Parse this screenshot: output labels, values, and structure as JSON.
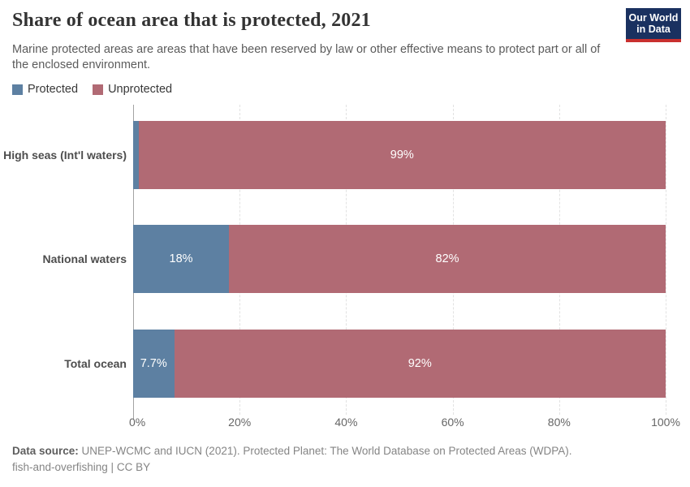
{
  "header": {
    "title": "Share of ocean area that is protected, 2021",
    "subtitle": "Marine protected areas are areas that have been reserved by law or other effective means to protect part or all of the enclosed environment.",
    "logo": {
      "line1": "Our World",
      "line2": "in Data",
      "bg_color": "#1a3160",
      "accent_color": "#c9302f"
    }
  },
  "chart_data": {
    "type": "bar",
    "variant": "stacked-horizontal",
    "title": "Share of ocean area that is protected, 2021",
    "categories": [
      "High seas (Int'l waters)",
      "National waters",
      "Total ocean"
    ],
    "series": [
      {
        "name": "Protected",
        "color": "#5d80a2",
        "values": [
          1,
          18,
          7.7
        ],
        "labels": [
          "",
          "18%",
          "7.7%"
        ]
      },
      {
        "name": "Unprotected",
        "color": "#b16a74",
        "values": [
          99,
          82,
          92.3
        ],
        "labels": [
          "99%",
          "82%",
          "92%"
        ]
      }
    ],
    "xlim": [
      0,
      100
    ],
    "x_ticks": [
      {
        "value": 0,
        "label": "0%"
      },
      {
        "value": 20,
        "label": "20%"
      },
      {
        "value": 40,
        "label": "40%"
      },
      {
        "value": 60,
        "label": "60%"
      },
      {
        "value": 80,
        "label": "80%"
      },
      {
        "value": 100,
        "label": "100%"
      }
    ],
    "legend_position": "top-left",
    "grid": "vertical-dashed"
  },
  "footer": {
    "source_label": "Data source:",
    "source_text": "UNEP-WCMC and IUCN (2021). Protected Planet: The World Database on Protected Areas (WDPA).",
    "note": "fish-and-overfishing | CC BY"
  }
}
